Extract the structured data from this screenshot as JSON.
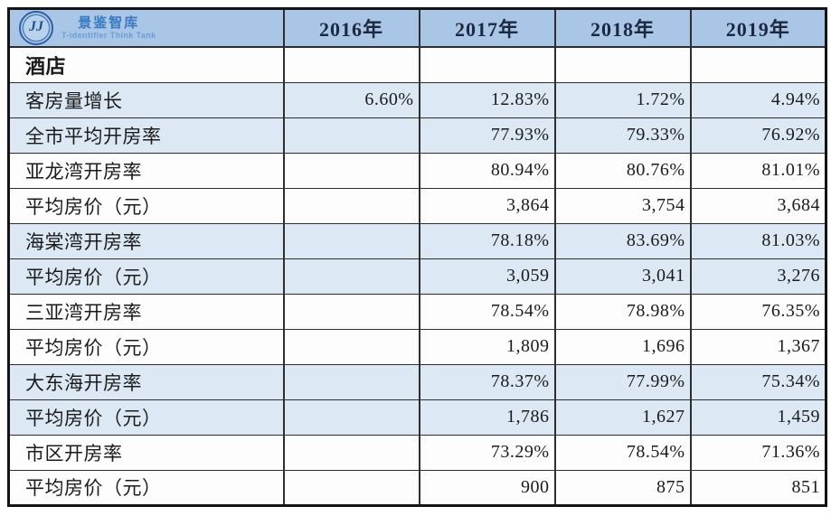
{
  "brand": {
    "monogram": "JJ",
    "name": "景鉴智库",
    "subtitle": "T-identifier Think Tank"
  },
  "colors": {
    "header_bg": "#a9c6e6",
    "band_blue_bg": "#dce8f4",
    "band_white_bg": "#fdfdfd",
    "border": "#141414",
    "brand_blue": "#3779c2",
    "year_text": "#1c2940"
  },
  "chart_data": {
    "type": "table",
    "title": "酒店",
    "columns": [
      "2016年",
      "2017年",
      "2018年",
      "2019年"
    ],
    "section_label": "酒店",
    "rows": [
      {
        "label": "客房量增长",
        "values": [
          "6.60%",
          "12.83%",
          "1.72%",
          "4.94%"
        ]
      },
      {
        "label": "全市平均开房率",
        "values": [
          "",
          "77.93%",
          "79.33%",
          "76.92%"
        ]
      },
      {
        "label": "亚龙湾开房率",
        "values": [
          "",
          "80.94%",
          "80.76%",
          "81.01%"
        ]
      },
      {
        "label": "平均房价（元）",
        "values": [
          "",
          "3,864",
          "3,754",
          "3,684"
        ]
      },
      {
        "label": "海棠湾开房率",
        "values": [
          "",
          "78.18%",
          "83.69%",
          "81.03%"
        ]
      },
      {
        "label": "平均房价（元）",
        "values": [
          "",
          "3,059",
          "3,041",
          "3,276"
        ]
      },
      {
        "label": "三亚湾开房率",
        "values": [
          "",
          "78.54%",
          "78.98%",
          "76.35%"
        ]
      },
      {
        "label": "平均房价（元）",
        "values": [
          "",
          "1,809",
          "1,696",
          "1,367"
        ]
      },
      {
        "label": "大东海开房率",
        "values": [
          "",
          "78.37%",
          "77.99%",
          "75.34%"
        ]
      },
      {
        "label": "平均房价（元）",
        "values": [
          "",
          "1,786",
          "1,627",
          "1,459"
        ]
      },
      {
        "label": "市区开房率",
        "values": [
          "",
          "73.29%",
          "78.54%",
          "71.36%"
        ]
      },
      {
        "label": "平均房价（元）",
        "values": [
          "",
          "900",
          "875",
          "851"
        ]
      }
    ]
  }
}
